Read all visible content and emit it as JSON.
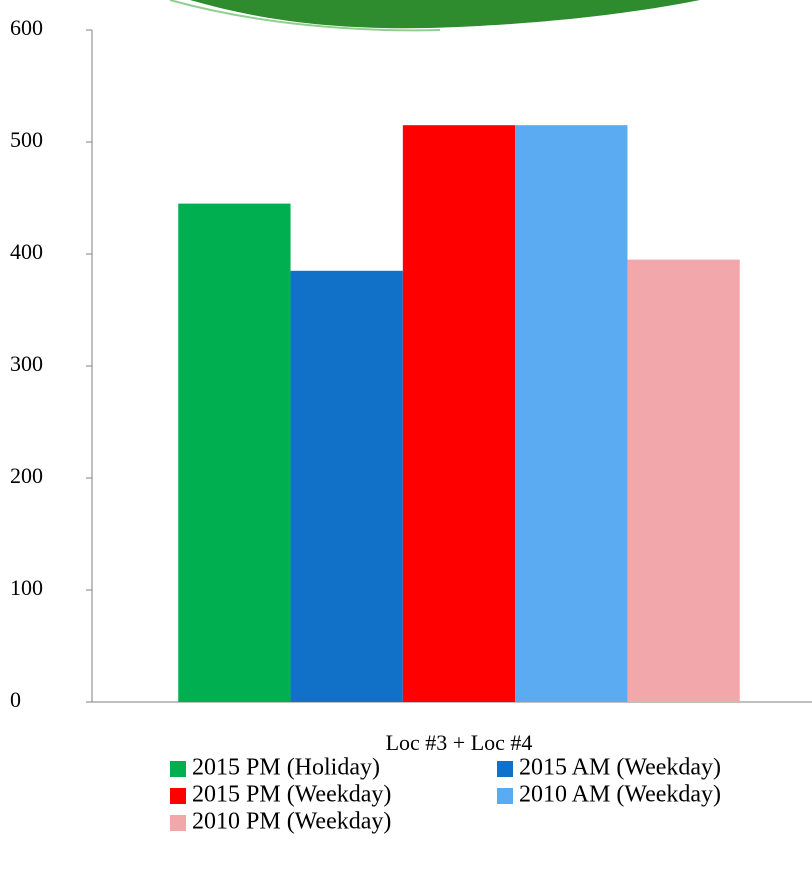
{
  "chart_data": {
    "type": "bar",
    "categories": [
      "Loc #3 + Loc #4"
    ],
    "series": [
      {
        "name": "2015 PM (Holiday)",
        "color": "#00b050",
        "values": [
          445
        ]
      },
      {
        "name": "2015 AM (Weekday)",
        "color": "#1170c8",
        "values": [
          385
        ]
      },
      {
        "name": "2015 PM (Weekday)",
        "color": "#ff0000",
        "values": [
          515
        ]
      },
      {
        "name": "2010 AM (Weekday)",
        "color": "#5babf3",
        "values": [
          515
        ]
      },
      {
        "name": "2010 PM (Weekday)",
        "color": "#f2a7ab",
        "values": [
          395
        ]
      }
    ],
    "ylim": [
      0,
      600
    ],
    "yticks": [
      0,
      100,
      200,
      300,
      400,
      500,
      600
    ],
    "grid": false
  }
}
